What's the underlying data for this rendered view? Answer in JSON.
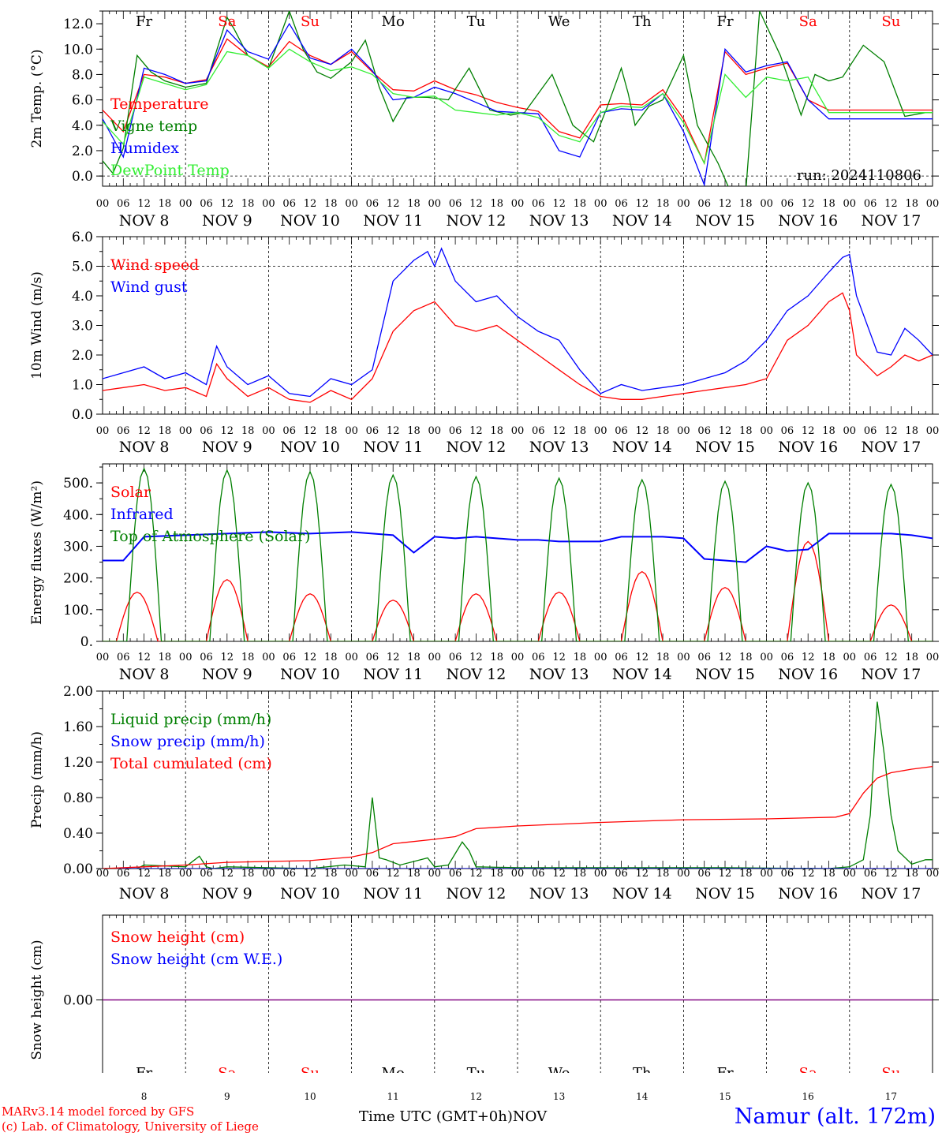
{
  "days": {
    "top": [
      "Fr",
      "Sa",
      "Su",
      "Mo",
      "Tu",
      "We",
      "Th",
      "Fr",
      "Sa",
      "Su"
    ],
    "weekend": [
      false,
      true,
      true,
      false,
      false,
      false,
      false,
      false,
      true,
      true
    ],
    "nov_labels": [
      "NOV  8",
      "NOV  9",
      "NOV 10",
      "NOV 11",
      "NOV 12",
      "NOV 13",
      "NOV 14",
      "NOV 15",
      "NOV 16",
      "NOV 17"
    ],
    "hour_labels": [
      "00",
      "06",
      "12",
      "18"
    ],
    "hour_end": "00",
    "bottom_numbers": [
      "8",
      "9",
      "10",
      "11",
      "12",
      "13",
      "14",
      "15",
      "16",
      "17"
    ]
  },
  "colors": {
    "red": "#ff0000",
    "green": "#007f00",
    "blue": "#0000ff",
    "lightgreen": "#33ee33",
    "purple": "#7f007f"
  },
  "footer": {
    "model": "MARv3.14 model forced by GFS",
    "copyright": "(c) Lab. of Climatology, University of Liege",
    "xlabel": "Time UTC (GMT+0h)",
    "month": "NOV",
    "station": "Namur (alt. 172m)"
  },
  "chart_data": [
    {
      "type": "line",
      "ylabel": "2m Temp. (°C)",
      "ylim": [
        -0.8,
        13.0
      ],
      "yticks": [
        "0.0",
        "2.0",
        "4.0",
        "6.0",
        "8.0",
        "10.0",
        "12.0"
      ],
      "ytick_values": [
        0,
        2,
        4,
        6,
        8,
        10,
        12
      ],
      "hline": 0,
      "annotation": "run: 2024110806",
      "x_unit": "hours since Nov 8 00 UTC",
      "series": [
        {
          "name": "Temperature",
          "color": "red",
          "x": [
            0,
            6,
            12,
            18,
            24,
            30,
            36,
            42,
            48,
            54,
            60,
            66,
            72,
            78,
            84,
            90,
            96,
            102,
            108,
            114,
            120,
            126,
            132,
            138,
            144,
            150,
            156,
            162,
            168,
            174,
            180,
            186,
            192,
            198,
            204,
            210,
            216,
            222,
            228,
            234,
            240
          ],
          "y": [
            5.2,
            3.5,
            8.0,
            7.8,
            7.3,
            7.6,
            10.8,
            9.5,
            8.6,
            10.6,
            9.5,
            8.8,
            9.8,
            8.2,
            6.8,
            6.7,
            7.5,
            6.8,
            6.4,
            5.8,
            5.4,
            5.1,
            3.5,
            3.0,
            5.6,
            5.7,
            5.6,
            6.8,
            4.5,
            1.0,
            9.8,
            8.0,
            8.5,
            8.9,
            6.0,
            5.2,
            5.2,
            5.2,
            5.2,
            5.2,
            5.2
          ]
        },
        {
          "name": "Vigne temp",
          "color": "green",
          "x": [
            0,
            3,
            6,
            10,
            14,
            18,
            24,
            30,
            36,
            38,
            42,
            48,
            54,
            58,
            62,
            66,
            72,
            76,
            80,
            84,
            88,
            94,
            100,
            106,
            112,
            118,
            122,
            130,
            136,
            142,
            146,
            150,
            152,
            154,
            158,
            162,
            168,
            172,
            178,
            182,
            186,
            190,
            196,
            202,
            206,
            210,
            214,
            220,
            226,
            232,
            238,
            240
          ],
          "y": [
            1.2,
            0.2,
            2.2,
            9.5,
            8.2,
            7.5,
            7.0,
            7.3,
            12.5,
            11.6,
            9.5,
            8.5,
            13.0,
            10.0,
            8.2,
            7.7,
            9.0,
            10.7,
            7.0,
            4.3,
            6.2,
            6.2,
            6.0,
            8.5,
            5.2,
            4.8,
            5.0,
            8.0,
            4.0,
            2.7,
            5.5,
            8.5,
            6.5,
            4.0,
            5.5,
            6.0,
            9.5,
            4.0,
            1.0,
            -1.5,
            -1.2,
            13.0,
            9.5,
            4.8,
            8.0,
            7.5,
            7.8,
            10.3,
            9.0,
            4.7,
            5.0,
            5.0
          ]
        },
        {
          "name": "Humidex",
          "color": "blue",
          "x": [
            0,
            6,
            12,
            18,
            24,
            30,
            36,
            42,
            48,
            54,
            60,
            66,
            72,
            78,
            84,
            90,
            96,
            102,
            108,
            114,
            120,
            126,
            132,
            138,
            144,
            150,
            156,
            162,
            168,
            174,
            180,
            186,
            192,
            198,
            204,
            210,
            216,
            222,
            228,
            234,
            240
          ],
          "y": [
            4.5,
            1.5,
            8.5,
            8.0,
            7.3,
            7.5,
            11.5,
            9.8,
            9.2,
            12.0,
            9.3,
            8.8,
            10.0,
            8.3,
            6.0,
            6.2,
            7.0,
            6.5,
            5.8,
            5.1,
            5.0,
            4.9,
            2.0,
            1.5,
            5.0,
            5.3,
            5.2,
            6.5,
            3.5,
            -0.7,
            10.0,
            8.2,
            8.7,
            9.0,
            6.0,
            4.5,
            4.5,
            4.5,
            4.5,
            4.5,
            4.5
          ]
        },
        {
          "name": "DewPoint Temp",
          "color": "lightgreen",
          "x": [
            0,
            6,
            12,
            18,
            24,
            30,
            36,
            42,
            48,
            54,
            60,
            66,
            72,
            78,
            84,
            90,
            96,
            102,
            108,
            114,
            120,
            126,
            132,
            138,
            144,
            150,
            156,
            162,
            168,
            174,
            180,
            186,
            192,
            198,
            204,
            210,
            216,
            222,
            228,
            234,
            240
          ],
          "y": [
            4.3,
            2.5,
            7.8,
            7.3,
            6.8,
            7.2,
            9.8,
            9.5,
            8.5,
            10.0,
            9.0,
            8.3,
            8.6,
            8.0,
            6.5,
            6.2,
            6.3,
            5.2,
            5.0,
            4.8,
            5.0,
            4.6,
            3.2,
            2.7,
            5.0,
            5.5,
            5.4,
            6.5,
            4.2,
            1.0,
            8.0,
            6.2,
            7.8,
            7.5,
            7.8,
            5.0,
            5.0,
            5.0,
            5.0,
            5.0,
            5.0
          ]
        }
      ]
    },
    {
      "type": "line",
      "ylabel": "10m Wind (m/s)",
      "ylim": [
        0,
        6.0
      ],
      "yticks": [
        "0.0",
        "1.0",
        "2.0",
        "3.0",
        "4.0",
        "5.0",
        "6.0"
      ],
      "ytick_values": [
        0,
        1,
        2,
        3,
        4,
        5,
        6
      ],
      "hline": 5.0,
      "series": [
        {
          "name": "Wind speed",
          "color": "red",
          "x": [
            0,
            6,
            12,
            18,
            24,
            30,
            33,
            36,
            42,
            48,
            54,
            60,
            66,
            72,
            78,
            84,
            90,
            96,
            102,
            108,
            114,
            120,
            126,
            132,
            138,
            144,
            150,
            156,
            162,
            168,
            174,
            180,
            186,
            192,
            198,
            204,
            210,
            214,
            216,
            218,
            224,
            228,
            232,
            236,
            240
          ],
          "y": [
            0.8,
            0.9,
            1.0,
            0.8,
            0.9,
            0.6,
            1.7,
            1.2,
            0.6,
            0.9,
            0.5,
            0.4,
            0.8,
            0.5,
            1.2,
            2.8,
            3.5,
            3.8,
            3.0,
            2.8,
            3.0,
            2.5,
            2.0,
            1.5,
            1.0,
            0.6,
            0.5,
            0.5,
            0.6,
            0.7,
            0.8,
            0.9,
            1.0,
            1.2,
            2.5,
            3.0,
            3.8,
            4.1,
            3.5,
            2.0,
            1.3,
            1.6,
            2.0,
            1.8,
            2.0
          ]
        },
        {
          "name": "Wind gust",
          "color": "blue",
          "x": [
            0,
            6,
            12,
            18,
            24,
            30,
            33,
            36,
            42,
            48,
            54,
            60,
            66,
            72,
            78,
            84,
            90,
            94,
            96,
            98,
            102,
            108,
            114,
            120,
            126,
            132,
            138,
            144,
            150,
            156,
            162,
            168,
            174,
            180,
            186,
            192,
            198,
            204,
            210,
            214,
            216,
            218,
            224,
            228,
            232,
            236,
            240
          ],
          "y": [
            1.2,
            1.4,
            1.6,
            1.2,
            1.4,
            1.0,
            2.3,
            1.6,
            1.0,
            1.3,
            0.7,
            0.6,
            1.2,
            1.0,
            1.5,
            4.5,
            5.2,
            5.5,
            5.0,
            5.6,
            4.5,
            3.8,
            4.0,
            3.3,
            2.8,
            2.5,
            1.5,
            0.7,
            1.0,
            0.8,
            0.9,
            1.0,
            1.2,
            1.4,
            1.8,
            2.5,
            3.5,
            4.0,
            4.8,
            5.3,
            5.4,
            4.0,
            2.1,
            2.0,
            2.9,
            2.5,
            2.0
          ]
        }
      ]
    },
    {
      "type": "line",
      "ylabel": "Energy fluxes (W/m²)",
      "ylim": [
        0,
        560
      ],
      "yticks": [
        "0.",
        "100.",
        "200.",
        "300.",
        "400.",
        "500."
      ],
      "ytick_values": [
        0,
        100,
        200,
        300,
        400,
        500
      ],
      "series": [
        {
          "name": "Solar",
          "color": "red",
          "peaks_hour": [
            10,
            36,
            60,
            84,
            108,
            132,
            156,
            180,
            204,
            228
          ],
          "peaks_value": [
            155,
            195,
            150,
            130,
            150,
            155,
            220,
            170,
            315,
            115
          ],
          "half_width_h": 6
        },
        {
          "name": "Infrared",
          "color": "blue",
          "x": [
            0,
            6,
            12,
            24,
            36,
            48,
            60,
            72,
            84,
            90,
            96,
            102,
            108,
            114,
            120,
            126,
            132,
            138,
            144,
            150,
            156,
            162,
            168,
            174,
            180,
            186,
            192,
            198,
            204,
            210,
            216,
            222,
            228,
            234,
            240
          ],
          "y": [
            255,
            255,
            330,
            335,
            340,
            345,
            340,
            345,
            335,
            280,
            330,
            325,
            330,
            325,
            320,
            320,
            315,
            315,
            315,
            330,
            330,
            330,
            325,
            260,
            255,
            250,
            300,
            285,
            290,
            340,
            340,
            340,
            340,
            335,
            325
          ]
        },
        {
          "name": "Top of Atmosphere (Solar)",
          "color": "green",
          "peaks_hour": [
            12,
            36,
            60,
            84,
            108,
            132,
            156,
            180,
            204,
            228
          ],
          "peaks_value": [
            545,
            540,
            535,
            525,
            520,
            515,
            510,
            505,
            500,
            495
          ],
          "half_width_h": 5
        }
      ]
    },
    {
      "type": "line",
      "ylabel": "Precip (mm/h)",
      "ylim": [
        0,
        2.0
      ],
      "yticks": [
        "0.00",
        "0.40",
        "0.80",
        "1.20",
        "1.60",
        "2.00"
      ],
      "ytick_values": [
        0,
        0.4,
        0.8,
        1.2,
        1.6,
        2.0
      ],
      "series": [
        {
          "name": "Liquid precip (mm/h)",
          "color": "green",
          "x": [
            0,
            10,
            12,
            24,
            28,
            30,
            32,
            36,
            60,
            70,
            76,
            78,
            80,
            82,
            86,
            94,
            96,
            100,
            104,
            106,
            108,
            120,
            150,
            180,
            210,
            216,
            220,
            222,
            224,
            226,
            228,
            230,
            234,
            238,
            240
          ],
          "y": [
            0,
            0,
            0.04,
            0.02,
            0.14,
            0.02,
            0,
            0.02,
            0,
            0.04,
            0.02,
            0.8,
            0.12,
            0.1,
            0.04,
            0.12,
            0.02,
            0.04,
            0.3,
            0.2,
            0.02,
            0.01,
            0.01,
            0.01,
            0,
            0.02,
            0.1,
            0.6,
            1.88,
            1.3,
            0.6,
            0.2,
            0.05,
            0.1,
            0.1
          ]
        },
        {
          "name": "Snow precip (mm/h)",
          "color": "blue",
          "x": [
            0,
            240
          ],
          "y": [
            0,
            0
          ]
        },
        {
          "name": "Total cumulated (cm)",
          "color": "red",
          "x": [
            0,
            12,
            24,
            36,
            48,
            60,
            72,
            78,
            84,
            96,
            102,
            108,
            120,
            144,
            168,
            192,
            212,
            216,
            220,
            224,
            228,
            234,
            240
          ],
          "y": [
            0.0,
            0.02,
            0.04,
            0.07,
            0.08,
            0.09,
            0.13,
            0.18,
            0.28,
            0.33,
            0.36,
            0.45,
            0.48,
            0.52,
            0.55,
            0.56,
            0.58,
            0.62,
            0.85,
            1.02,
            1.08,
            1.12,
            1.15
          ]
        }
      ]
    },
    {
      "type": "line",
      "ylabel": "Snow height (cm)",
      "ylim": [
        -1,
        1
      ],
      "yticks": [
        "0.00"
      ],
      "ytick_values": [
        0
      ],
      "series": [
        {
          "name": "Snow height (cm)",
          "color": "red",
          "x": [
            0,
            240
          ],
          "y": [
            0,
            0
          ]
        },
        {
          "name": "Snow height (cm W.E.)",
          "color": "blue",
          "x": [
            0,
            240
          ],
          "y": [
            0,
            0
          ]
        }
      ]
    }
  ]
}
